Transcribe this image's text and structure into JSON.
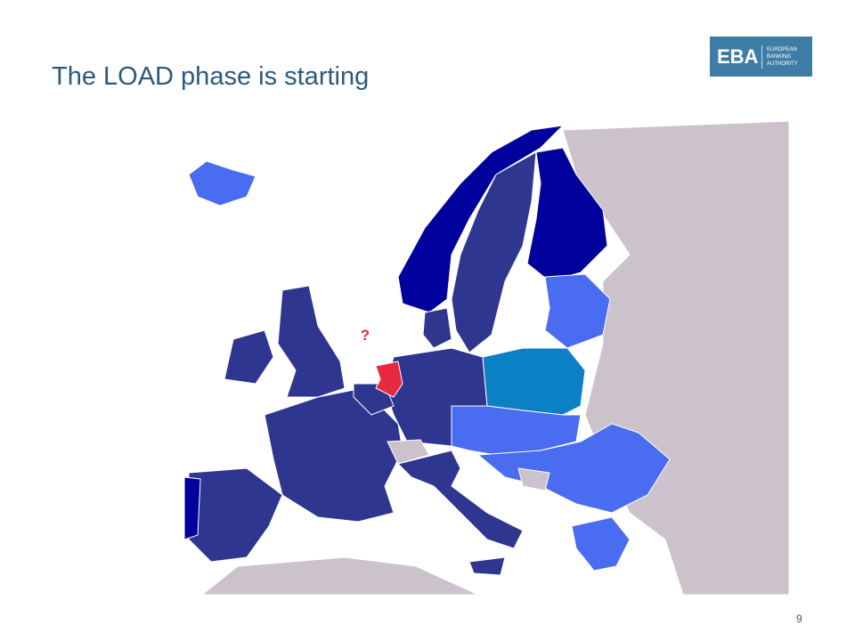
{
  "header": {
    "title": "The LOAD phase is starting",
    "logo": {
      "abbr": "EBA",
      "name_lines": [
        "EUROPEAN",
        "BANKING",
        "AUTHORITY"
      ]
    }
  },
  "map": {
    "annotation": "?"
  },
  "footer": {
    "page_number": "9"
  }
}
